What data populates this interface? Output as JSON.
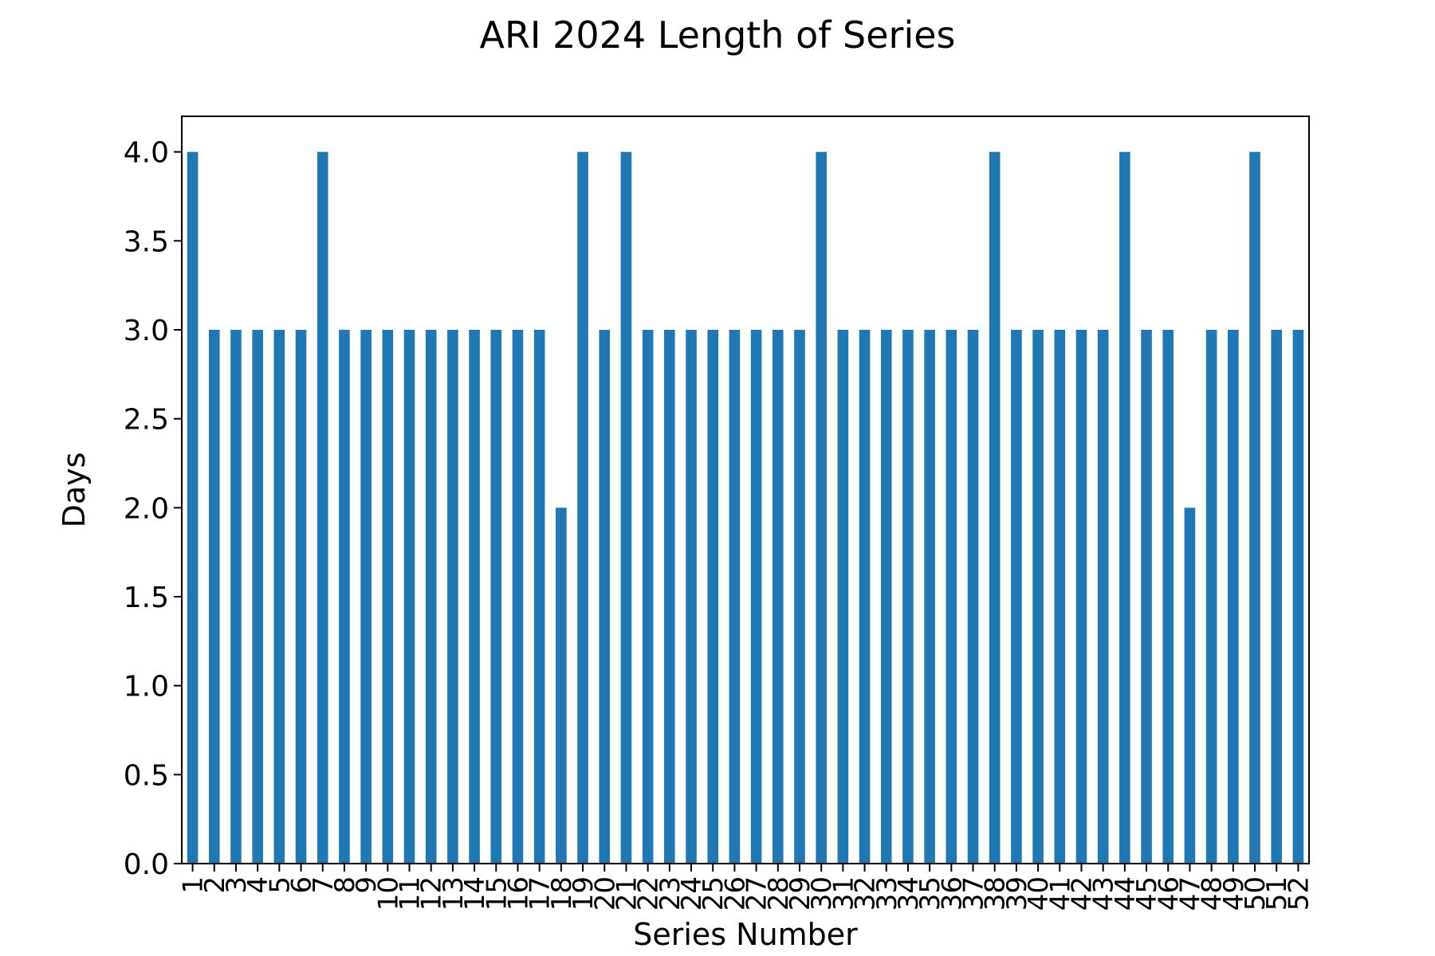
{
  "chart_data": {
    "type": "bar",
    "title": "ARI 2024 Length of Series",
    "xlabel": "Series Number",
    "ylabel": "Days",
    "ylim": [
      0,
      4.2
    ],
    "yticks": [
      "0.0",
      "0.5",
      "1.0",
      "1.5",
      "2.0",
      "2.5",
      "3.0",
      "3.5",
      "4.0"
    ],
    "categories": [
      "1",
      "2",
      "3",
      "4",
      "5",
      "6",
      "7",
      "8",
      "9",
      "10",
      "11",
      "12",
      "13",
      "14",
      "15",
      "16",
      "17",
      "18",
      "19",
      "20",
      "21",
      "22",
      "23",
      "24",
      "25",
      "26",
      "27",
      "28",
      "29",
      "30",
      "31",
      "32",
      "33",
      "34",
      "35",
      "36",
      "37",
      "38",
      "39",
      "40",
      "41",
      "42",
      "43",
      "44",
      "45",
      "46",
      "47",
      "48",
      "49",
      "50",
      "51",
      "52"
    ],
    "values": [
      4,
      3,
      3,
      3,
      3,
      3,
      4,
      3,
      3,
      3,
      3,
      3,
      3,
      3,
      3,
      3,
      3,
      2,
      4,
      3,
      4,
      3,
      3,
      3,
      3,
      3,
      3,
      3,
      3,
      4,
      3,
      3,
      3,
      3,
      3,
      3,
      3,
      4,
      3,
      3,
      3,
      3,
      3,
      4,
      3,
      3,
      2,
      3,
      3,
      4,
      3,
      3
    ],
    "grid": false,
    "bar_color": "#1f77b4"
  }
}
